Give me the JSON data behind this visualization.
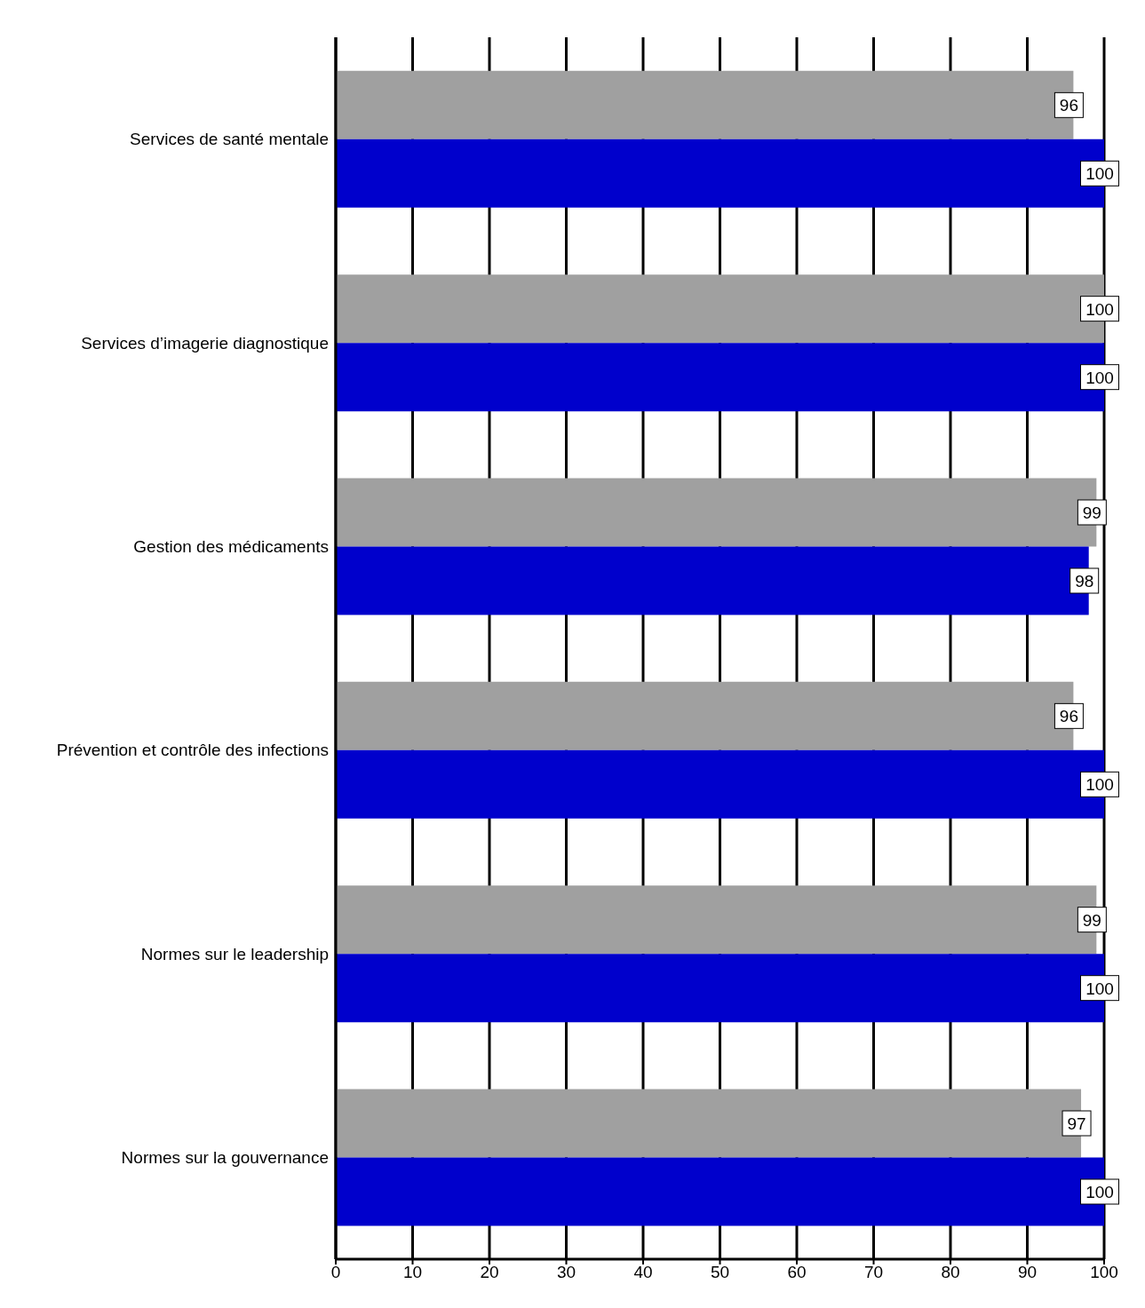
{
  "chart_data": {
    "type": "bar",
    "orientation": "horizontal",
    "categories": [
      "Services de santé mentale",
      "Services d’imagerie diagnostique",
      "Gestion des médicaments",
      "Prévention et contrôle des infections",
      "Normes sur le leadership",
      "Normes sur la gouvernance"
    ],
    "series": [
      {
        "color": "#a0a0a0",
        "values": [
          96,
          100,
          99,
          96,
          99,
          97
        ]
      },
      {
        "color": "#0000cc",
        "values": [
          100,
          100,
          98,
          100,
          100,
          100
        ]
      }
    ],
    "xlim": [
      0,
      100
    ],
    "xticks": [
      0,
      10,
      20,
      30,
      40,
      50,
      60,
      70,
      80,
      90,
      100
    ],
    "grid": "x",
    "data_labels": true
  }
}
